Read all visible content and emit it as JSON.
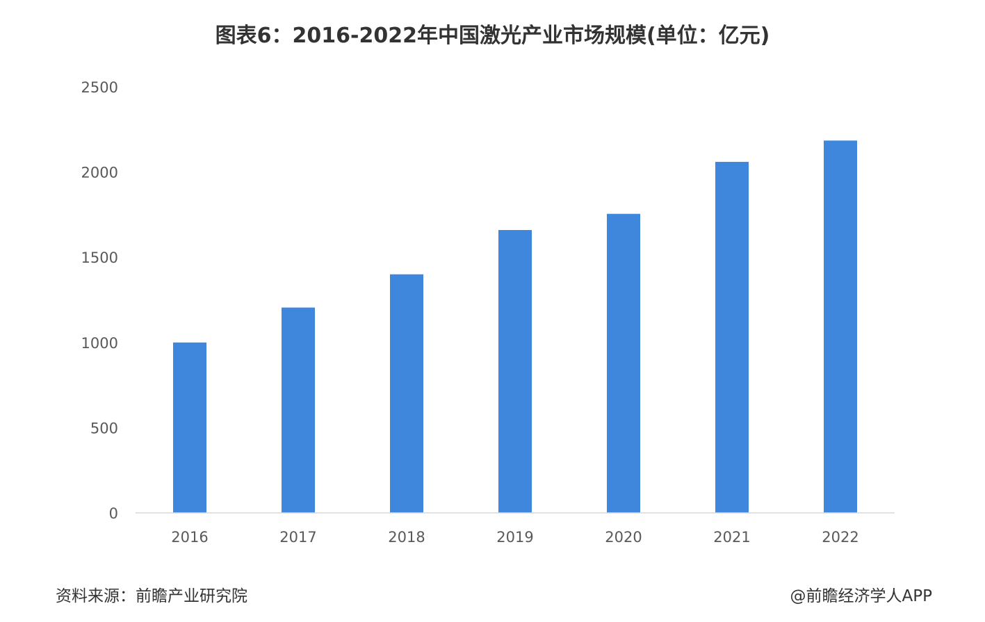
{
  "chart_data": {
    "type": "bar",
    "title": "图表6：2016-2022年中国激光产业市场规模(单位：亿元)",
    "categories": [
      "2016",
      "2017",
      "2018",
      "2019",
      "2020",
      "2021",
      "2022"
    ],
    "series": [
      {
        "values": [
          1000,
          1205,
          1400,
          1660,
          1755,
          2060,
          2185
        ]
      }
    ],
    "y_ticks": [
      "0",
      "500",
      "1000",
      "1500",
      "2000",
      "2500"
    ],
    "ylim": [
      0,
      2500
    ],
    "xlabel": "",
    "ylabel": "",
    "grid": false,
    "legend": "none",
    "bar_color": "#3f87dc",
    "axis_color": "#d9d9d9",
    "tick_color": "#595959"
  },
  "footer": {
    "source": "资料来源：前瞻产业研究院",
    "credit": "@前瞻经济学人APP"
  }
}
